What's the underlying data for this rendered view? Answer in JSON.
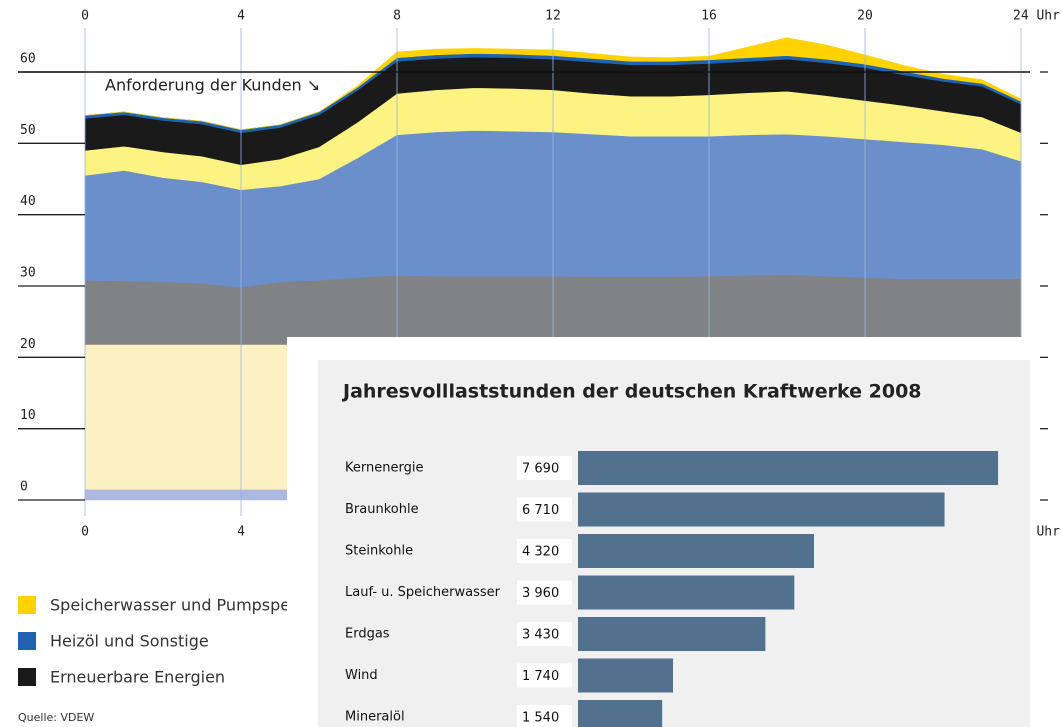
{
  "chart_data": [
    {
      "type": "area",
      "stacked": true,
      "annotation": "Anforderung der Kunden ↘",
      "source": "Quelle: VDEW",
      "x": [
        0,
        1,
        2,
        3,
        4,
        5,
        6,
        7,
        8,
        9,
        10,
        11,
        12,
        13,
        14,
        15,
        16,
        17,
        18,
        19,
        20,
        21,
        22,
        23,
        24
      ],
      "xlim": [
        0,
        24
      ],
      "xticks": [
        0,
        4,
        8,
        12,
        16,
        20,
        {
          "value": 24,
          "label": "24 Uhr"
        }
      ],
      "ylim": [
        0,
        60
      ],
      "yticks": [
        0,
        10,
        20,
        30,
        40,
        50,
        60
      ],
      "reference_line": 60,
      "series": [
        {
          "color": "#aab8e2",
          "values": [
            1.5,
            1.5,
            1.5,
            1.5,
            1.5,
            1.5,
            1.5,
            1.5,
            1.5,
            1.5,
            1.5,
            1.5,
            1.5,
            1.5,
            1.5,
            1.5,
            1.5,
            1.5,
            1.5,
            1.5,
            1.5,
            1.5,
            1.5,
            1.5,
            1.5
          ]
        },
        {
          "color": "#fdf0c2",
          "values": [
            20.3,
            20.3,
            20.3,
            20.3,
            20.3,
            20.3,
            20.3,
            20.3,
            20.3,
            20.3,
            20.3,
            20.3,
            20.3,
            20.3,
            20.3,
            20.3,
            20.3,
            20.3,
            20.3,
            20.3,
            20.3,
            20.3,
            20.3,
            20.3,
            20.3
          ]
        },
        {
          "color": "#808285",
          "values": [
            9.0,
            8.9,
            8.8,
            8.6,
            8.0,
            8.8,
            9.0,
            9.4,
            9.7,
            9.6,
            9.6,
            9.6,
            9.6,
            9.5,
            9.5,
            9.5,
            9.6,
            9.7,
            9.8,
            9.6,
            9.4,
            9.2,
            9.2,
            9.2,
            9.2
          ]
        },
        {
          "color": "#6b8fcb",
          "values": [
            14.7,
            15.5,
            14.6,
            14.2,
            13.7,
            13.4,
            14.2,
            16.8,
            19.7,
            20.2,
            20.4,
            20.3,
            20.2,
            20.0,
            19.7,
            19.7,
            19.6,
            19.7,
            19.7,
            19.6,
            19.4,
            19.2,
            18.8,
            18.2,
            16.5
          ]
        },
        {
          "color": "#fdf383",
          "values": [
            3.5,
            3.4,
            3.6,
            3.6,
            3.5,
            3.8,
            4.5,
            5.0,
            5.8,
            5.9,
            6.0,
            6.0,
            5.9,
            5.7,
            5.6,
            5.6,
            5.8,
            5.9,
            6.0,
            5.7,
            5.4,
            5.1,
            4.7,
            4.5,
            4.0
          ]
        },
        {
          "name": "Erneuerbare Energien",
          "color": "#1a1a1a",
          "values": [
            4.5,
            4.4,
            4.4,
            4.5,
            4.5,
            4.4,
            4.5,
            4.5,
            4.5,
            4.4,
            4.3,
            4.3,
            4.3,
            4.4,
            4.4,
            4.4,
            4.4,
            4.4,
            4.5,
            4.6,
            4.6,
            4.3,
            4.2,
            4.3,
            4.0
          ]
        },
        {
          "name": "Heizöl und Sonstige",
          "color": "#1f63b0",
          "values": [
            0.4,
            0.4,
            0.4,
            0.4,
            0.4,
            0.4,
            0.4,
            0.4,
            0.5,
            0.5,
            0.5,
            0.5,
            0.5,
            0.5,
            0.5,
            0.5,
            0.5,
            0.5,
            0.5,
            0.5,
            0.5,
            0.5,
            0.4,
            0.4,
            0.4
          ]
        },
        {
          "name": "Speicherwasser und Pumpspeicher",
          "color": "#ffd200",
          "values": [
            0,
            0,
            0,
            0,
            0,
            0,
            0,
            0.2,
            0.8,
            0.8,
            0.7,
            0.7,
            0.8,
            0.7,
            0.6,
            0.5,
            0.5,
            1.5,
            2.5,
            2.0,
            1.3,
            0.8,
            0.6,
            0.5,
            0.3
          ]
        }
      ]
    },
    {
      "type": "bar",
      "orientation": "horizontal",
      "title": "Jahresvolllaststunden der deutschen Kraftwerke 2008",
      "categories": [
        "Kernenergie",
        "Braunkohle",
        "Steinkohle",
        "Lauf- u. Speicherwasser",
        "Erdgas",
        "Wind",
        "Mineralöl"
      ],
      "values": [
        7690,
        6710,
        4320,
        3960,
        3430,
        1740,
        1540
      ],
      "value_labels": [
        "7 690",
        "6 710",
        "4 320",
        "3 960",
        "3 430",
        "1 740",
        "1 540"
      ],
      "color": "#52718f",
      "xlim": [
        0,
        8000
      ]
    }
  ]
}
